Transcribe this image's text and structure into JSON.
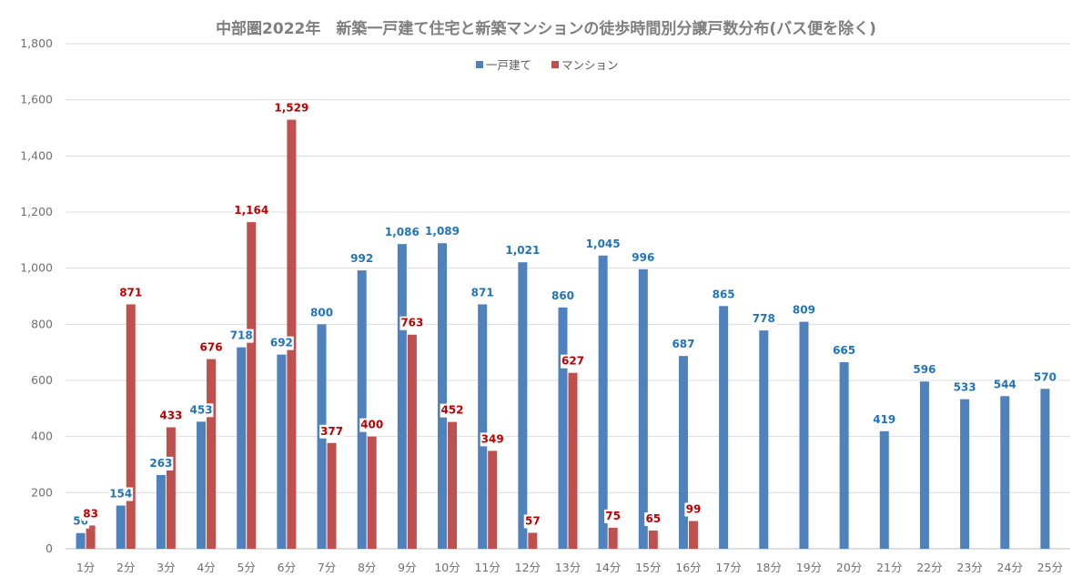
{
  "chart_data": {
    "type": "bar",
    "title": "中部圏2022年　新築一戸建て住宅と新築マンションの徒歩時間別分譲戸数分布(バス便を除く)",
    "categories": [
      "1分",
      "2分",
      "3分",
      "4分",
      "5分",
      "6分",
      "7分",
      "8分",
      "9分",
      "10分",
      "11分",
      "12分",
      "13分",
      "14分",
      "15分",
      "16分",
      "17分",
      "18分",
      "19分",
      "20分",
      "21分",
      "22分",
      "23分",
      "24分",
      "25分"
    ],
    "series": [
      {
        "name": "一戸建て",
        "color": "#4f81bd",
        "label_color": "#1f74bd",
        "values": [
          56,
          154,
          263,
          453,
          718,
          692,
          800,
          992,
          1086,
          1089,
          871,
          1021,
          860,
          1045,
          996,
          687,
          865,
          778,
          809,
          665,
          419,
          596,
          533,
          544,
          570
        ]
      },
      {
        "name": "マンション",
        "color": "#c0504d",
        "label_color": "#c00000",
        "values": [
          83,
          871,
          433,
          676,
          1164,
          1529,
          377,
          400,
          763,
          452,
          349,
          57,
          627,
          75,
          65,
          99,
          null,
          null,
          null,
          null,
          null,
          null,
          null,
          null,
          null
        ]
      }
    ],
    "ylim": [
      0,
      1800
    ],
    "yticks": [
      0,
      200,
      400,
      600,
      800,
      1000,
      1200,
      1400,
      1600,
      1800
    ],
    "ytick_labels": [
      "0",
      "200",
      "400",
      "600",
      "800",
      "1,000",
      "1,200",
      "1,400",
      "1,600",
      "1,800"
    ],
    "legend_position": "top-center",
    "grid": true
  }
}
